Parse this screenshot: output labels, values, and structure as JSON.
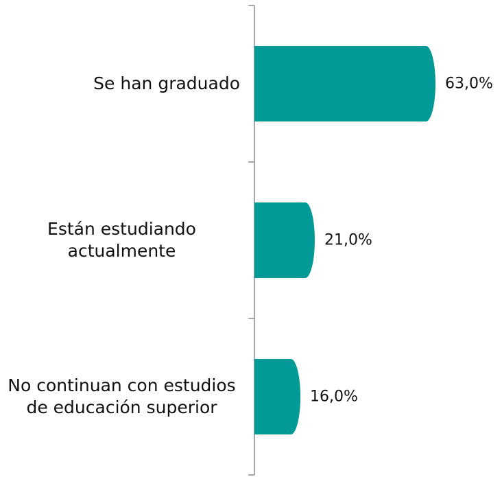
{
  "chart_data": {
    "type": "hbar",
    "categories": [
      "Se han graduado",
      "Están estudiando actualmente",
      "No continuan con estudios de educación superior"
    ],
    "values": [
      63.0,
      21.0,
      16.0
    ],
    "value_labels": [
      "63,0%",
      "21,0%",
      "16,0%"
    ],
    "color": "#029a97"
  }
}
